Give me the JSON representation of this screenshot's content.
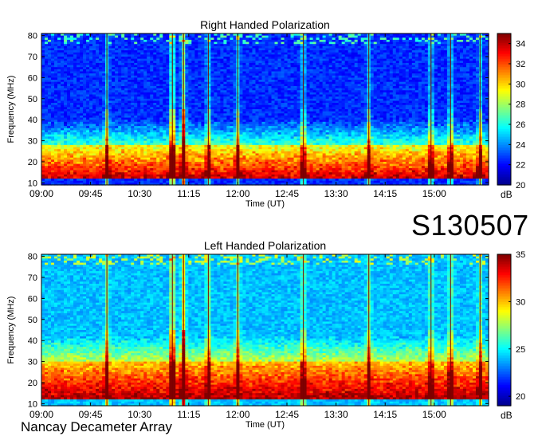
{
  "observation_id": "S130507",
  "footer_label": "Nancay Decameter Array",
  "colors": {
    "colormap": [
      "#00008f",
      "#0000ff",
      "#0080ff",
      "#00ffff",
      "#80ff80",
      "#ffff00",
      "#ff8000",
      "#ff0000",
      "#800000"
    ]
  },
  "chart_data": [
    {
      "type": "heatmap",
      "title": "Right Handed Polarization",
      "xlabel": "Time (UT)",
      "ylabel": "Frequency (MHz)",
      "x_ticks": [
        "09:00",
        "09:45",
        "10:30",
        "11:15",
        "12:00",
        "12:45",
        "13:30",
        "14:15",
        "15:00"
      ],
      "y_ticks": [
        "10",
        "20",
        "30",
        "40",
        "50",
        "60",
        "70",
        "80"
      ],
      "xlim_hours": [
        9.0,
        15.83
      ],
      "ylim": [
        9,
        81
      ],
      "colorbar": {
        "unit": "dB",
        "ticks": [
          "20",
          "22",
          "24",
          "26",
          "28",
          "30",
          "32",
          "34"
        ],
        "range": [
          20,
          35
        ]
      },
      "bursts_ut_hours": [
        10.0,
        11.0,
        11.17,
        11.55,
        12.0,
        13.0,
        14.0,
        14.95,
        15.25,
        15.7
      ],
      "features": {
        "strong_band_mhz": [
          12,
          28
        ],
        "quiet_level_db": 22.5,
        "band_level_db": 34,
        "burst_peak_time": "11:15"
      }
    },
    {
      "type": "heatmap",
      "title": "Left Handed Polarization",
      "xlabel": "Time (UT)",
      "ylabel": "Frequency (MHz)",
      "x_ticks": [
        "09:00",
        "09:45",
        "10:30",
        "11:15",
        "12:00",
        "12:45",
        "13:30",
        "14:15",
        "15:00"
      ],
      "y_ticks": [
        "10",
        "20",
        "30",
        "40",
        "50",
        "60",
        "70",
        "80"
      ],
      "xlim_hours": [
        9.0,
        15.83
      ],
      "ylim": [
        9,
        81
      ],
      "colorbar": {
        "unit": "dB",
        "ticks": [
          "20",
          "25",
          "30",
          "35"
        ],
        "range": [
          19,
          35
        ]
      },
      "bursts_ut_hours": [
        10.0,
        11.0,
        11.17,
        11.55,
        12.0,
        13.0,
        14.0,
        14.95,
        15.25,
        15.7
      ],
      "features": {
        "strong_band_mhz": [
          12,
          30
        ],
        "quiet_level_db": 24,
        "band_level_db": 34.5,
        "burst_peak_time": "11:15"
      }
    }
  ]
}
